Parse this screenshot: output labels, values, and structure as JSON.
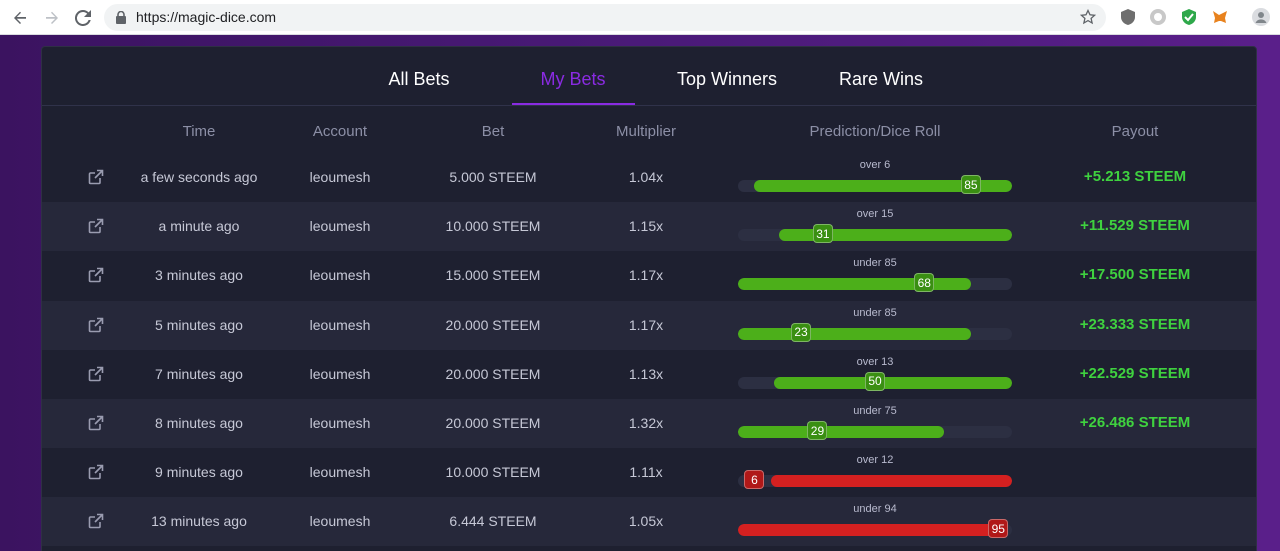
{
  "browser": {
    "url": "https://magic-dice.com"
  },
  "tabs": [
    {
      "label": "All Bets",
      "active": false
    },
    {
      "label": "My Bets",
      "active": true
    },
    {
      "label": "Top Winners",
      "active": false
    },
    {
      "label": "Rare Wins",
      "active": false
    }
  ],
  "columns": [
    "Time",
    "Account",
    "Bet",
    "Multiplier",
    "Prediction/Dice Roll",
    "Payout"
  ],
  "colors": {
    "accent": "#8a2be2",
    "win": "#3fd23f",
    "bar_win": "#4caf1a",
    "bar_loss": "#d42020"
  },
  "rows": [
    {
      "time": "a few seconds ago",
      "account": "leoumesh",
      "bet": "5.000 STEEM",
      "multiplier": "1.04x",
      "prediction": "over 6",
      "direction": "over",
      "target": 6,
      "roll": "85",
      "win": true,
      "payout": "+5.213 STEEM"
    },
    {
      "time": "a minute ago",
      "account": "leoumesh",
      "bet": "10.000 STEEM",
      "multiplier": "1.15x",
      "prediction": "over 15",
      "direction": "over",
      "target": 15,
      "roll": "31",
      "win": true,
      "payout": "+11.529 STEEM"
    },
    {
      "time": "3 minutes ago",
      "account": "leoumesh",
      "bet": "15.000 STEEM",
      "multiplier": "1.17x",
      "prediction": "under 85",
      "direction": "under",
      "target": 85,
      "roll": "68",
      "win": true,
      "payout": "+17.500 STEEM"
    },
    {
      "time": "5 minutes ago",
      "account": "leoumesh",
      "bet": "20.000 STEEM",
      "multiplier": "1.17x",
      "prediction": "under 85",
      "direction": "under",
      "target": 85,
      "roll": "23",
      "win": true,
      "payout": "+23.333 STEEM"
    },
    {
      "time": "7 minutes ago",
      "account": "leoumesh",
      "bet": "20.000 STEEM",
      "multiplier": "1.13x",
      "prediction": "over 13",
      "direction": "over",
      "target": 13,
      "roll": "50",
      "win": true,
      "payout": "+22.529 STEEM"
    },
    {
      "time": "8 minutes ago",
      "account": "leoumesh",
      "bet": "20.000 STEEM",
      "multiplier": "1.32x",
      "prediction": "under 75",
      "direction": "under",
      "target": 75,
      "roll": "29",
      "win": true,
      "payout": "+26.486 STEEM"
    },
    {
      "time": "9 minutes ago",
      "account": "leoumesh",
      "bet": "10.000 STEEM",
      "multiplier": "1.11x",
      "prediction": "over 12",
      "direction": "over",
      "target": 12,
      "roll": "6",
      "win": false,
      "payout": ""
    },
    {
      "time": "13 minutes ago",
      "account": "leoumesh",
      "bet": "6.444 STEEM",
      "multiplier": "1.05x",
      "prediction": "under 94",
      "direction": "under",
      "target": 94,
      "roll": "95",
      "win": false,
      "payout": ""
    }
  ]
}
